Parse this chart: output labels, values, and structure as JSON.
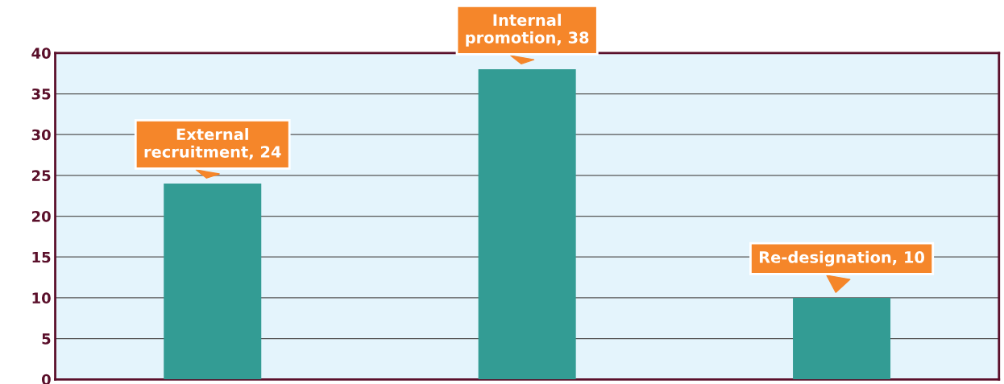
{
  "chart_data": {
    "type": "bar",
    "categories": [
      null,
      null,
      null
    ],
    "values": [
      24,
      38,
      10
    ],
    "color": "#339c94",
    "value_labels": [
      "External\nrecruitment, 24",
      "Internal\npromotion, 38",
      "Re-designation, 10"
    ],
    "ylim": [
      0,
      40
    ],
    "yticks": [
      0,
      5,
      10,
      15,
      20,
      25,
      30,
      35,
      40
    ],
    "grid": "y",
    "tick_labels": "y"
  }
}
